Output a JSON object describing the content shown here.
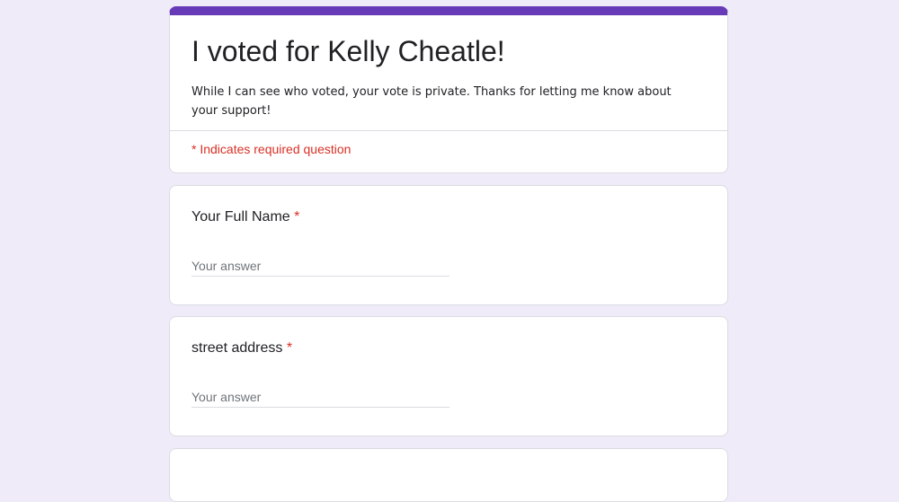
{
  "form": {
    "title": "I voted for Kelly Cheatle!",
    "description": "While I can see who voted, your vote is private. Thanks for letting me know about your support!",
    "required_note": "* Indicates required question",
    "accent_color": "#673ab7",
    "required_color": "#d93025"
  },
  "questions": [
    {
      "label": "Your Full Name",
      "required_marker": "*",
      "placeholder": "Your answer",
      "value": ""
    },
    {
      "label": "street address",
      "required_marker": "*",
      "placeholder": "Your answer",
      "value": ""
    }
  ]
}
